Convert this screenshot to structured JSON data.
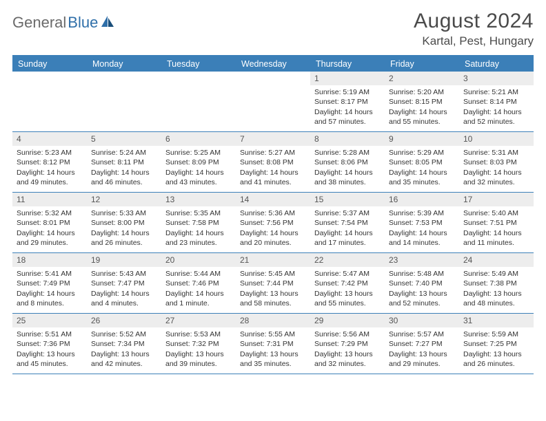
{
  "logo": {
    "text1": "General",
    "text2": "Blue"
  },
  "title": "August 2024",
  "location": "Kartal, Pest, Hungary",
  "colors": {
    "headerBar": "#3b7fb8",
    "dayNumBg": "#ededed",
    "textGray": "#4a4a4a",
    "cellBorder": "#3b7fb8",
    "logoGray": "#6a6a6a",
    "logoBlue": "#2f6fa9"
  },
  "dayNames": [
    "Sunday",
    "Monday",
    "Tuesday",
    "Wednesday",
    "Thursday",
    "Friday",
    "Saturday"
  ],
  "grid": {
    "leadingEmpty": 4,
    "days": [
      {
        "n": 1,
        "sunrise": "5:19 AM",
        "sunset": "8:17 PM",
        "daylight": "14 hours and 57 minutes."
      },
      {
        "n": 2,
        "sunrise": "5:20 AM",
        "sunset": "8:15 PM",
        "daylight": "14 hours and 55 minutes."
      },
      {
        "n": 3,
        "sunrise": "5:21 AM",
        "sunset": "8:14 PM",
        "daylight": "14 hours and 52 minutes."
      },
      {
        "n": 4,
        "sunrise": "5:23 AM",
        "sunset": "8:12 PM",
        "daylight": "14 hours and 49 minutes."
      },
      {
        "n": 5,
        "sunrise": "5:24 AM",
        "sunset": "8:11 PM",
        "daylight": "14 hours and 46 minutes."
      },
      {
        "n": 6,
        "sunrise": "5:25 AM",
        "sunset": "8:09 PM",
        "daylight": "14 hours and 43 minutes."
      },
      {
        "n": 7,
        "sunrise": "5:27 AM",
        "sunset": "8:08 PM",
        "daylight": "14 hours and 41 minutes."
      },
      {
        "n": 8,
        "sunrise": "5:28 AM",
        "sunset": "8:06 PM",
        "daylight": "14 hours and 38 minutes."
      },
      {
        "n": 9,
        "sunrise": "5:29 AM",
        "sunset": "8:05 PM",
        "daylight": "14 hours and 35 minutes."
      },
      {
        "n": 10,
        "sunrise": "5:31 AM",
        "sunset": "8:03 PM",
        "daylight": "14 hours and 32 minutes."
      },
      {
        "n": 11,
        "sunrise": "5:32 AM",
        "sunset": "8:01 PM",
        "daylight": "14 hours and 29 minutes."
      },
      {
        "n": 12,
        "sunrise": "5:33 AM",
        "sunset": "8:00 PM",
        "daylight": "14 hours and 26 minutes."
      },
      {
        "n": 13,
        "sunrise": "5:35 AM",
        "sunset": "7:58 PM",
        "daylight": "14 hours and 23 minutes."
      },
      {
        "n": 14,
        "sunrise": "5:36 AM",
        "sunset": "7:56 PM",
        "daylight": "14 hours and 20 minutes."
      },
      {
        "n": 15,
        "sunrise": "5:37 AM",
        "sunset": "7:54 PM",
        "daylight": "14 hours and 17 minutes."
      },
      {
        "n": 16,
        "sunrise": "5:39 AM",
        "sunset": "7:53 PM",
        "daylight": "14 hours and 14 minutes."
      },
      {
        "n": 17,
        "sunrise": "5:40 AM",
        "sunset": "7:51 PM",
        "daylight": "14 hours and 11 minutes."
      },
      {
        "n": 18,
        "sunrise": "5:41 AM",
        "sunset": "7:49 PM",
        "daylight": "14 hours and 8 minutes."
      },
      {
        "n": 19,
        "sunrise": "5:43 AM",
        "sunset": "7:47 PM",
        "daylight": "14 hours and 4 minutes."
      },
      {
        "n": 20,
        "sunrise": "5:44 AM",
        "sunset": "7:46 PM",
        "daylight": "14 hours and 1 minute."
      },
      {
        "n": 21,
        "sunrise": "5:45 AM",
        "sunset": "7:44 PM",
        "daylight": "13 hours and 58 minutes."
      },
      {
        "n": 22,
        "sunrise": "5:47 AM",
        "sunset": "7:42 PM",
        "daylight": "13 hours and 55 minutes."
      },
      {
        "n": 23,
        "sunrise": "5:48 AM",
        "sunset": "7:40 PM",
        "daylight": "13 hours and 52 minutes."
      },
      {
        "n": 24,
        "sunrise": "5:49 AM",
        "sunset": "7:38 PM",
        "daylight": "13 hours and 48 minutes."
      },
      {
        "n": 25,
        "sunrise": "5:51 AM",
        "sunset": "7:36 PM",
        "daylight": "13 hours and 45 minutes."
      },
      {
        "n": 26,
        "sunrise": "5:52 AM",
        "sunset": "7:34 PM",
        "daylight": "13 hours and 42 minutes."
      },
      {
        "n": 27,
        "sunrise": "5:53 AM",
        "sunset": "7:32 PM",
        "daylight": "13 hours and 39 minutes."
      },
      {
        "n": 28,
        "sunrise": "5:55 AM",
        "sunset": "7:31 PM",
        "daylight": "13 hours and 35 minutes."
      },
      {
        "n": 29,
        "sunrise": "5:56 AM",
        "sunset": "7:29 PM",
        "daylight": "13 hours and 32 minutes."
      },
      {
        "n": 30,
        "sunrise": "5:57 AM",
        "sunset": "7:27 PM",
        "daylight": "13 hours and 29 minutes."
      },
      {
        "n": 31,
        "sunrise": "5:59 AM",
        "sunset": "7:25 PM",
        "daylight": "13 hours and 26 minutes."
      }
    ]
  },
  "labels": {
    "sunrise": "Sunrise:",
    "sunset": "Sunset:",
    "daylight": "Daylight:"
  }
}
